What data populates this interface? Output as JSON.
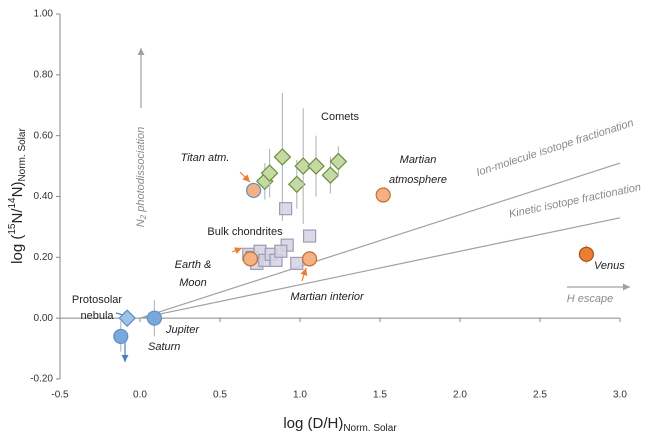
{
  "chart_data": {
    "type": "scatter",
    "x_label": {
      "text": "log (D/H)",
      "sub": "Norm. Solar"
    },
    "y_label": {
      "prefix": "log (",
      "sup1": "15",
      "mid": "N/",
      "sup2": "14",
      "end": "N)",
      "sub": "Norm. Solar"
    },
    "xlim": [
      -0.5,
      3.0
    ],
    "ylim": [
      -0.2,
      1.0
    ],
    "xticks": [
      -0.5,
      {
        "value": 0,
        "label": "0.0"
      },
      0.5,
      {
        "value": 1,
        "label": "1.0"
      },
      1.5,
      {
        "value": 2,
        "label": "2.0"
      },
      2.5,
      {
        "value": 3,
        "label": "3.0"
      }
    ],
    "yticks": [
      {
        "value": -0.2,
        "label": "-0.20"
      },
      {
        "value": 0,
        "label": "0.00"
      },
      {
        "value": 0.2,
        "label": "0.20"
      },
      {
        "value": 0.4,
        "label": "0.40"
      },
      {
        "value": 0.6,
        "label": "0.60"
      },
      {
        "value": 0.8,
        "label": "0.80"
      },
      {
        "value": 1,
        "label": "1.00"
      }
    ],
    "series": [
      {
        "label": [
          "Protosolar",
          "nebula"
        ],
        "marker": "diamond",
        "color": "#9dc3e6",
        "edge": "#5b8fc9",
        "x": [
          -0.08
        ],
        "y": [
          0.0
        ],
        "yerr": [
          0
        ]
      },
      {
        "label": [
          "Jupiter"
        ],
        "marker": "circle",
        "color": "#7ba7dc",
        "edge": "#5b8fc9",
        "x": [
          0.09
        ],
        "y": [
          0.0
        ],
        "yerr": [
          0.06
        ]
      },
      {
        "label": [
          "Saturn"
        ],
        "marker": "circle",
        "color": "#7ba7dc",
        "edge": "#5b8fc9",
        "x": [
          -0.12
        ],
        "y": [
          -0.06
        ],
        "yerr": [
          0.05
        ]
      },
      {
        "label": [
          "Titan atm."
        ],
        "marker": "circle",
        "color": "#f4b183",
        "edge": "#5b8fc9",
        "x": [
          0.71
        ],
        "y": [
          0.42
        ],
        "yerr": [
          0
        ]
      },
      {
        "label": [
          "Comets"
        ],
        "marker": "diamond",
        "color": "#c5d9a5",
        "edge": "#6b8f3a",
        "x": [
          0.78,
          0.81,
          0.89,
          0.98,
          1.02,
          1.1,
          1.19,
          1.24
        ],
        "y": [
          0.45,
          0.477,
          0.53,
          0.44,
          0.5,
          0.5,
          0.47,
          0.515
        ],
        "yerr": [
          0.06,
          0.08,
          0.21,
          0.08,
          0.19,
          0.1,
          0.06,
          0.05
        ]
      },
      {
        "label": [
          "Bulk chondrites"
        ],
        "marker": "square",
        "color": "#d4d2e0",
        "edge": "#a09ab8",
        "x": [
          0.91,
          0.92,
          0.98,
          1.06,
          0.68,
          0.7,
          0.73,
          0.75,
          0.78,
          0.82,
          0.85,
          0.88
        ],
        "y": [
          0.36,
          0.24,
          0.18,
          0.27,
          0.21,
          0.2,
          0.18,
          0.22,
          0.19,
          0.21,
          0.19,
          0.22
        ],
        "yerr": [
          0,
          0,
          0,
          0,
          0,
          0,
          0,
          0,
          0,
          0,
          0,
          0
        ]
      },
      {
        "label": [
          "Earth &",
          "Moon"
        ],
        "marker": "circle",
        "color": "#f4b183",
        "edge": "#c07030",
        "x": [
          0.69
        ],
        "y": [
          0.195
        ],
        "yerr": [
          0
        ]
      },
      {
        "label": [
          "Martian interior"
        ],
        "marker": "circle",
        "color": "#f4b183",
        "edge": "#c07030",
        "x": [
          1.06
        ],
        "y": [
          0.195
        ],
        "yerr": [
          0
        ]
      },
      {
        "label": [
          "Martian",
          "atmosphere"
        ],
        "marker": "circle",
        "color": "#f4b183",
        "edge": "#c07030",
        "x": [
          1.52
        ],
        "y": [
          0.405
        ],
        "yerr": [
          0
        ]
      },
      {
        "label": [
          "Venus"
        ],
        "marker": "circle",
        "color": "#ed7d31",
        "edge": "#a0501a",
        "x": [
          2.79
        ],
        "y": [
          0.21
        ],
        "yerr": [
          0.03
        ]
      }
    ],
    "lines": [
      {
        "label": "Ion-molecule isotope fractionation",
        "x": [
          0,
          3.0
        ],
        "y": [
          0,
          0.51
        ]
      },
      {
        "label": "Kinetic isotope fractionation",
        "x": [
          0,
          3.0
        ],
        "y": [
          0,
          0.33
        ]
      }
    ],
    "annotations": {
      "n2": {
        "text": "N",
        "sub": "2",
        "rest": " photodissociation"
      },
      "h_escape": "H escape"
    }
  }
}
